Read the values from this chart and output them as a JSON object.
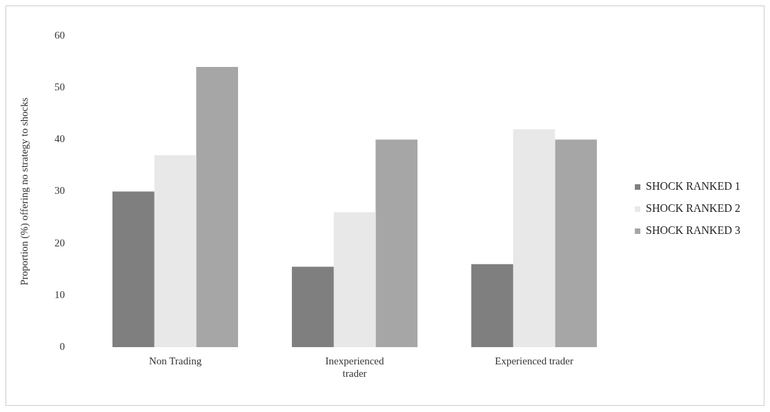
{
  "chart_data": {
    "type": "bar",
    "ylabel": "Proportion (%) offering no strategy to shocks",
    "categories": [
      "Non Trading",
      "Inexperienced trader",
      "Experienced trader"
    ],
    "series": [
      {
        "name": "SHOCK RANKED 1",
        "color": "#7f7f7f",
        "values": [
          30,
          15.5,
          16
        ]
      },
      {
        "name": "SHOCK RANKED 2",
        "color": "#e8e8e8",
        "values": [
          37,
          26,
          42
        ]
      },
      {
        "name": "SHOCK RANKED 3",
        "color": "#a6a6a6",
        "values": [
          54,
          40,
          40
        ]
      }
    ],
    "ylim": [
      0,
      60
    ],
    "yticks": [
      0,
      10,
      20,
      30,
      40,
      50,
      60
    ],
    "grid": false,
    "legend": "right"
  }
}
